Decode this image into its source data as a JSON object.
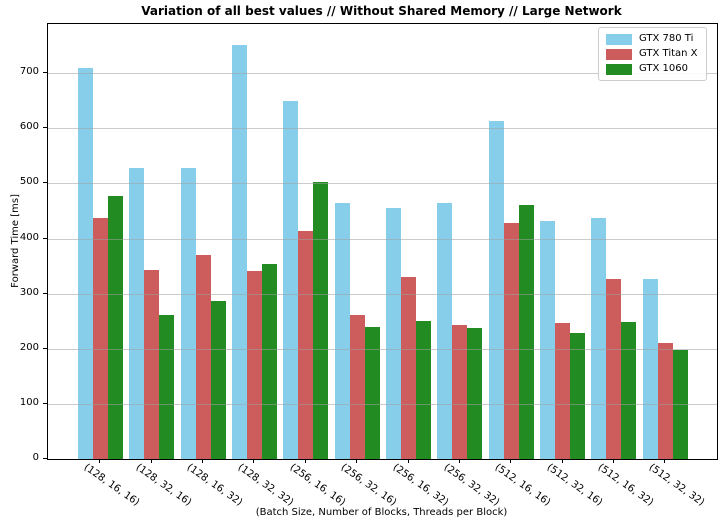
{
  "chart_data": {
    "type": "bar",
    "title": "Variation of all best values // Without Shared Memory // Large Network",
    "xlabel": "(Batch Size, Number of Blocks, Threads per Block)",
    "ylabel": "Forward Time [ms]",
    "ylim": [
      0,
      789
    ],
    "yticks": [
      0,
      100,
      200,
      300,
      400,
      500,
      600,
      700
    ],
    "grid": true,
    "grid_color": "#b0b0b0",
    "legend_position": "upper right",
    "categories": [
      "(128, 16, 16)",
      "(128, 32, 16)",
      "(128, 16, 32)",
      "(128, 32, 32)",
      "(256, 16, 16)",
      "(256, 32, 16)",
      "(256, 16, 32)",
      "(256, 32, 32)",
      "(512, 16, 16)",
      "(512, 32, 16)",
      "(512, 16, 32)",
      "(512, 32, 32)"
    ],
    "series": [
      {
        "name": "GTX 780 Ti",
        "color": "#87CEEB",
        "values": [
          710,
          527,
          527,
          751,
          649,
          464,
          456,
          464,
          613,
          431,
          437,
          327
        ]
      },
      {
        "name": "GTX Titan X",
        "color": "#CD5C5C",
        "values": [
          438,
          343,
          370,
          341,
          414,
          261,
          330,
          244,
          428,
          247,
          327,
          211
        ]
      },
      {
        "name": "GTX 1060",
        "color": "#228B22",
        "values": [
          477,
          261,
          287,
          354,
          502,
          240,
          251,
          237,
          460,
          229,
          248,
          198
        ]
      }
    ]
  }
}
